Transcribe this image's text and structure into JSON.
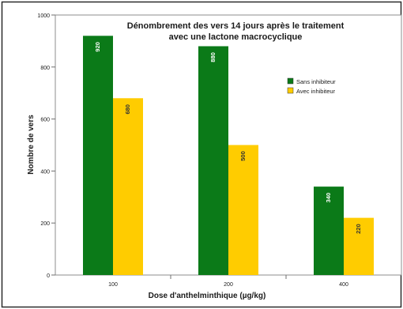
{
  "colors": {
    "frame_border": "#2a2a2a",
    "plot_border": "#8c8c8c",
    "plot_background": "#ffffff",
    "tick_color": "#6f6f6f",
    "text": "#1a1a1a"
  },
  "chart_data": {
    "type": "bar",
    "title_line1": "Dénombrement des vers 14 jours après le traitement",
    "title_line2": "avec une lactone macrocyclique",
    "xlabel": "Dose d'anthelminthique (µg/kg)",
    "ylabel": "Nombre de vers",
    "categories": [
      "100",
      "200",
      "400"
    ],
    "series": [
      {
        "name": "Sans inhibiteur",
        "color": "#0b7a18",
        "values": [
          920,
          880,
          340
        ]
      },
      {
        "name": "Avec inhibiteur",
        "color": "#ffcc00",
        "values": [
          680,
          500,
          220
        ]
      }
    ],
    "ylim": [
      0,
      1000
    ],
    "yticks": [
      0,
      200,
      400,
      600,
      800,
      1000
    ],
    "grid": false,
    "legend_position": "right",
    "data_labels": true
  }
}
